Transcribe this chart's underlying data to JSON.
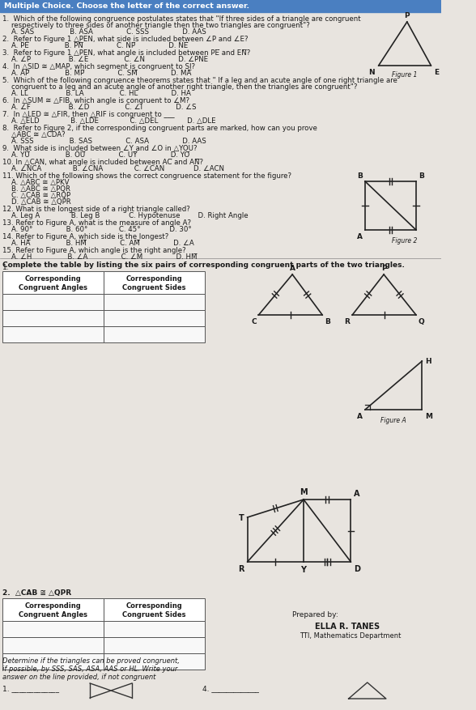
{
  "bg_color": "#e8e4df",
  "header_bg": "#4a7fc1",
  "header_text": "Multiple Choice. Choose the letter of the correct answer.",
  "text_color": "#1a1a1a",
  "line_color": "#222222",
  "q1": "1.  Which of the following congruence postulates states that \"If three sides of a triangle are congruent",
  "q1b": "    respectively to three sides of another triangle then the two triangles are congruent\"?",
  "q1c": "    A. SAS                B. ASA               C. SSS               D. AAS",
  "q2": "2.  Refer to Figure 1 △PEN, what side is included between ∠P and ∠E?",
  "q2c": "    A. PE̅                B. PN̅               C. NP̅               D. NE̅",
  "q3": "3.  Refer to Figure 1 △PEN, what angle is included between PE̅ and EN̅?",
  "q3c": "    A. ∠P                 B. ∠E                C. ∠N               D. ∠PNE",
  "q4": "4.  In △SID ≅ △MAP, which segment is congruent to SI?",
  "q4c": "    A. AP̅                B. MP̅               C. SM̅               D. MA̅",
  "q5": "5.  Which of the following congruence theorems states that \" If a leg and an acute angle of one right triangle are",
  "q5b": "    congruent to a leg and an acute angle of another right triangle, then the triangles are congruent\"?",
  "q5c": "    A. LL                 B. LA                C. HL               D. HA",
  "q6": "6.  In △SUM ≅ △FIB, which angle is congruent to ∠M?",
  "q6c": "    A. ∠F                 B. ∠D                C. ∠I               D. ∠S",
  "q7": "7.  In △LED ≅ △FIR, then △RIF is congruent to ___",
  "q7c": "    A. △ELD              B. △LDE              C. △DEL             D. △DLE",
  "q8": "8.  Refer to Figure 2, if the corresponding congruent parts are marked, how can you prove",
  "q8b": "    △ABC ≅ △CDA?",
  "q8c": "    A. SSS                B. SAS               C. ASA               D. AAS",
  "q9": "9.  What side is included between ∠Y and ∠O in △YOU?",
  "q9c": "    A. YU̅                B. OU̅               C. UY̅               D. YO̅",
  "q10": "10. In △CAN, what angle is included between AC̅ and AN̅?",
  "q10c": "    A. ∠NCA              B. ∠CNA              C. ∠CAN             D. ∠ACN",
  "q11": "11. Which of the following shows the correct congruence statement for the figure?",
  "q11a": "    A. △ABC ≅ △PKV",
  "q11b": "    B. △ABC ≅ △PQR",
  "q11c": "    C. △CAB ≅ △RQP",
  "q11d": "    D. △CAB ≅ △QPR",
  "q12": "12. What is the longest side of a right triangle called?",
  "q12c": "    A. Leg A              B. Leg B             C. Hypotenuse        D. Right Angle",
  "q13": "13. Refer to Figure A, what is the measure of angle A?",
  "q13c": "    A. 90°               B. 60°              C. 45°             D. 30°",
  "q14": "14. Refer to Figure A, which side is the longest?",
  "q14c": "    A. HA̅                B. HM̅               C. AM̅               D. ∠A",
  "q15": "15. Refer to Figure A, which angle is the right angle?",
  "q15c": "    A. ∠H                B. ∠A               C. ∠M               D. HM̅",
  "sect2_title": "Complete the table by listing the six pairs of corresponding congruent parts of the two triangles.",
  "col1_hdr": "Corresponding\nCongruent Angles",
  "col2_hdr": "Corresponding\nCongruent Sides",
  "table2_lbl": "2.  △CAB ≅ △QPR",
  "prepared": "Prepared by:",
  "name": "ELLA R. TANES",
  "dept": "TTI, Mathematics Department",
  "footer1": "Determine if the triangles can be proved congruent,",
  "footer2": "if possible, by SSS, SAS, ASA, AAS or HL. Write your",
  "footer3": "answer on the line provided, if not congruent",
  "blank1": "1. _____________",
  "blank4": "4. _____________"
}
